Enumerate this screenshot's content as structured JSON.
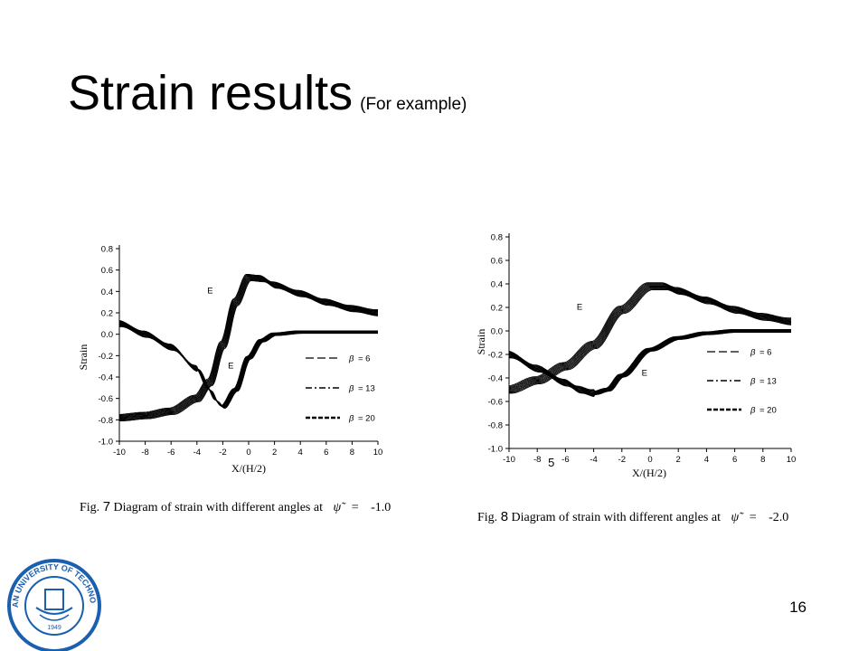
{
  "slide": {
    "title": "Strain results",
    "subtitle": "(For example)",
    "page_number": "16",
    "logo_text": "DALIAN UNIVERSITY OF TECHNOLOGY",
    "logo_year": "1949"
  },
  "chart_data": [
    {
      "type": "line",
      "id": "fig7",
      "xlabel": "X/(H/2)",
      "ylabel": "Strain",
      "xlim": [
        -10,
        10
      ],
      "ylim": [
        -1.0,
        0.8
      ],
      "xticks": [
        "-10",
        "-8",
        "-6",
        "-4",
        "-2",
        "0",
        "2",
        "4",
        "6",
        "8",
        "10"
      ],
      "yticks": [
        "-1.0",
        "-0.8",
        "-0.6",
        "-0.4",
        "-0.2",
        "0.0",
        "0.2",
        "0.4",
        "0.6",
        "0.8"
      ],
      "curve_labels": [
        "E",
        "E"
      ],
      "legend": [
        {
          "symbol": "β",
          "text": "= 6"
        },
        {
          "symbol": "β",
          "text": "= 13"
        },
        {
          "symbol": "β",
          "text": "= 20"
        }
      ],
      "series": [
        {
          "group": "upper",
          "x": [
            -10,
            -8,
            -6,
            -4,
            -3,
            -2,
            -1,
            0,
            1,
            2,
            4,
            6,
            8,
            10
          ],
          "y": [
            -0.78,
            -0.76,
            -0.72,
            -0.6,
            -0.45,
            -0.1,
            0.3,
            0.53,
            0.52,
            0.46,
            0.38,
            0.3,
            0.24,
            0.2
          ]
        },
        {
          "group": "lower",
          "x": [
            -10,
            -8,
            -6,
            -4,
            -3,
            -2.5,
            -2,
            -1,
            0,
            1,
            2,
            4,
            6,
            8,
            10
          ],
          "y": [
            0.1,
            0.0,
            -0.12,
            -0.32,
            -0.52,
            -0.62,
            -0.68,
            -0.52,
            -0.22,
            -0.06,
            0.0,
            0.02,
            0.02,
            0.02,
            0.02
          ]
        }
      ],
      "caption_prefix": "Fig. ",
      "caption_number": "7",
      "caption_text": "Diagram of strain with different angles at",
      "caption_symbol": "ψ̃",
      "caption_eq": "=",
      "caption_value": "-1.0"
    },
    {
      "type": "line",
      "id": "fig8",
      "xlabel": "X/(H/2)",
      "ylabel": "Strain",
      "xlim": [
        -10,
        10
      ],
      "ylim": [
        -1.0,
        0.8
      ],
      "xticks": [
        "-10",
        "-8",
        "5",
        "-6",
        "-4",
        "-2",
        "0",
        "2",
        "4",
        "6",
        "8",
        "10"
      ],
      "yticks": [
        "-1.0",
        "-0.8",
        "-0.6",
        "-0.4",
        "-0.2",
        "0.0",
        "0.2",
        "0.4",
        "0.6",
        "0.8"
      ],
      "curve_labels": [
        "E",
        "E"
      ],
      "legend": [
        {
          "symbol": "β",
          "text": "= 6"
        },
        {
          "symbol": "β",
          "text": "= 13"
        },
        {
          "symbol": "β",
          "text": "= 20"
        }
      ],
      "series": [
        {
          "group": "upper",
          "x": [
            -10,
            -8,
            -6,
            -4,
            -2,
            0,
            1,
            2,
            4,
            6,
            8,
            10
          ],
          "y": [
            -0.5,
            -0.42,
            -0.3,
            -0.12,
            0.18,
            0.38,
            0.38,
            0.34,
            0.26,
            0.18,
            0.12,
            0.08
          ]
        },
        {
          "group": "lower",
          "x": [
            -10,
            -8,
            -6,
            -5,
            -4,
            -3,
            -2,
            0,
            2,
            4,
            6,
            8,
            10
          ],
          "y": [
            -0.2,
            -0.32,
            -0.44,
            -0.5,
            -0.53,
            -0.5,
            -0.38,
            -0.16,
            -0.06,
            -0.02,
            0.0,
            0.0,
            0.0
          ]
        }
      ],
      "caption_prefix": "Fig. ",
      "caption_number": "8",
      "caption_text": "Diagram of strain with different angles at",
      "caption_symbol": "ψ̃",
      "caption_eq": "=",
      "caption_value": "-2.0"
    }
  ]
}
